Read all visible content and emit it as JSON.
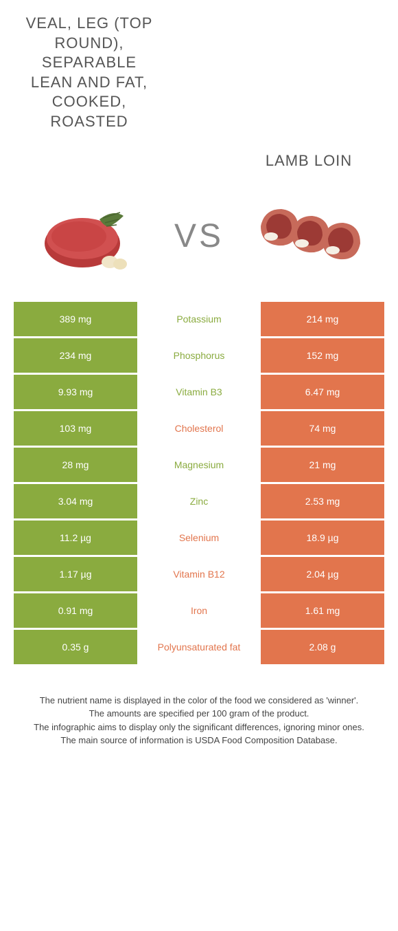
{
  "colors": {
    "left": "#8aab3f",
    "right": "#e2754d",
    "mid_text_left": "#8aab3f",
    "mid_text_right": "#e2754d"
  },
  "titles": {
    "left": "VEAL, LEG (TOP ROUND), SEPARABLE LEAN AND FAT, COOKED, ROASTED",
    "right": "LAMB LOIN",
    "vs": "VS"
  },
  "rows": [
    {
      "left": "389 mg",
      "label": "Potassium",
      "right": "214 mg",
      "winner": "left"
    },
    {
      "left": "234 mg",
      "label": "Phosphorus",
      "right": "152 mg",
      "winner": "left"
    },
    {
      "left": "9.93 mg",
      "label": "Vitamin B3",
      "right": "6.47 mg",
      "winner": "left"
    },
    {
      "left": "103 mg",
      "label": "Cholesterol",
      "right": "74 mg",
      "winner": "right"
    },
    {
      "left": "28 mg",
      "label": "Magnesium",
      "right": "21 mg",
      "winner": "left"
    },
    {
      "left": "3.04 mg",
      "label": "Zinc",
      "right": "2.53 mg",
      "winner": "left"
    },
    {
      "left": "11.2 µg",
      "label": "Selenium",
      "right": "18.9 µg",
      "winner": "right"
    },
    {
      "left": "1.17 µg",
      "label": "Vitamin B12",
      "right": "2.04 µg",
      "winner": "right"
    },
    {
      "left": "0.91 mg",
      "label": "Iron",
      "right": "1.61 mg",
      "winner": "right"
    },
    {
      "left": "0.35 g",
      "label": "Polyunsaturated fat",
      "right": "2.08 g",
      "winner": "right"
    }
  ],
  "footer": {
    "line1": "The nutrient name is displayed in the color of the food we considered as 'winner'.",
    "line2": "The amounts are specified per 100 gram of the product.",
    "line3": "The infographic aims to display only the significant differences, ignoring minor ones.",
    "line4": "The main source of information is USDA Food Composition Database."
  }
}
